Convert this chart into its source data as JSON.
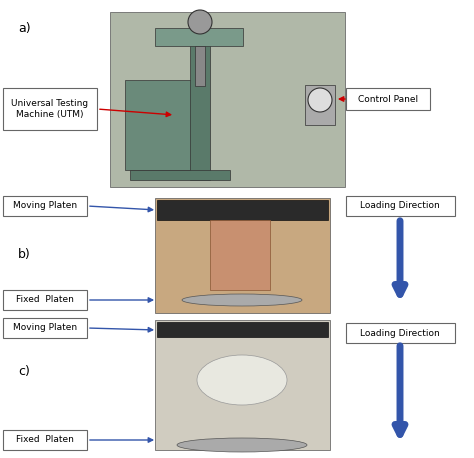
{
  "title_a": "a)",
  "title_b": "b)",
  "title_c": "c)",
  "label_utm": "Universal Testing\nMachine (UTM)",
  "label_control": "Control Panel",
  "label_moving_platen_b": "Moving Platen",
  "label_fixed_platen_b": "Fixed  Platen",
  "label_moving_platen_c": "Moving Platen",
  "label_fixed_platen_c": "Fixed  Platen",
  "label_loading_b": "Loading Direction",
  "label_loading_c": "Loading Direction",
  "bg_color": "#ffffff",
  "arrow_color_red": "#cc0000",
  "arrow_color_blue": "#3355aa",
  "photo_color_a": "#b0b8a8",
  "photo_color_b": "#c8a880",
  "photo_color_c": "#d0ccc0",
  "font_size_label": 6.5,
  "font_size_section": 9
}
